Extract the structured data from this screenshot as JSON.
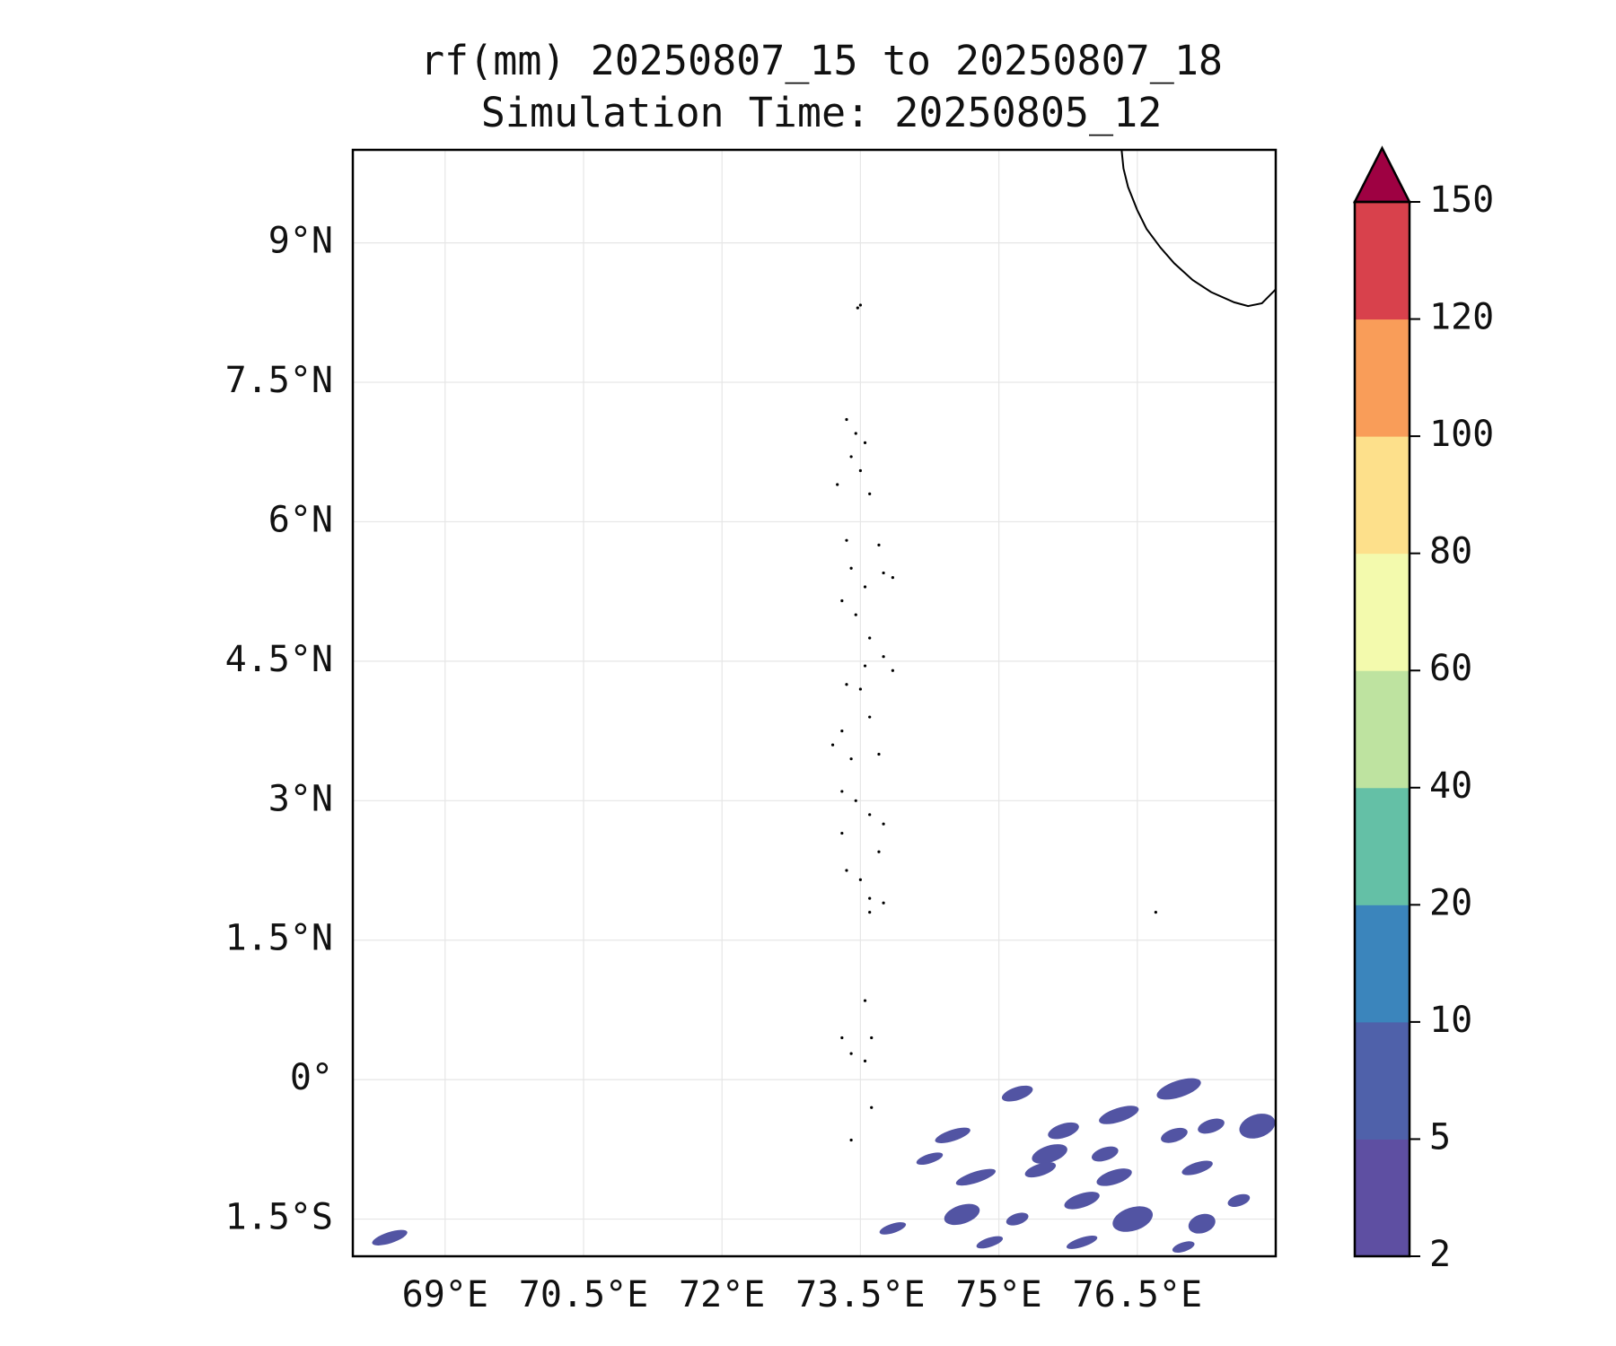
{
  "title": {
    "line1": "rf(mm) 20250807_15 to 20250807_18",
    "line2": "Simulation Time: 20250805_12"
  },
  "map": {
    "extent": {
      "lon": [
        68.0,
        78.0
      ],
      "lat": [
        -1.9,
        10.0
      ]
    },
    "lat_ticks": [
      {
        "value": 9.0,
        "label": "9°N"
      },
      {
        "value": 7.5,
        "label": "7.5°N"
      },
      {
        "value": 6.0,
        "label": "6°N"
      },
      {
        "value": 4.5,
        "label": "4.5°N"
      },
      {
        "value": 3.0,
        "label": "3°N"
      },
      {
        "value": 1.5,
        "label": "1.5°N"
      },
      {
        "value": 0.0,
        "label": "0°"
      },
      {
        "value": -1.5,
        "label": "1.5°S"
      }
    ],
    "lon_ticks": [
      {
        "value": 69.0,
        "label": "69°E"
      },
      {
        "value": 70.5,
        "label": "70.5°E"
      },
      {
        "value": 72.0,
        "label": "72°E"
      },
      {
        "value": 73.5,
        "label": "73.5°E"
      },
      {
        "value": 75.0,
        "label": "75°E"
      },
      {
        "value": 76.5,
        "label": "76.5°E"
      }
    ],
    "gridlines": true,
    "coastline_color": "#000000",
    "india_coast": [
      [
        76.33,
        10.0
      ],
      [
        76.35,
        9.8
      ],
      [
        76.4,
        9.6
      ],
      [
        76.5,
        9.35
      ],
      [
        76.6,
        9.15
      ],
      [
        76.75,
        8.95
      ],
      [
        76.9,
        8.78
      ],
      [
        77.1,
        8.6
      ],
      [
        77.3,
        8.47
      ],
      [
        77.55,
        8.36
      ],
      [
        77.7,
        8.32
      ],
      [
        77.85,
        8.35
      ],
      [
        78.0,
        8.5
      ]
    ],
    "islands": [
      [
        73.47,
        8.3
      ],
      [
        73.5,
        8.33
      ],
      [
        73.35,
        7.1
      ],
      [
        73.45,
        6.95
      ],
      [
        73.55,
        6.85
      ],
      [
        73.4,
        6.7
      ],
      [
        73.5,
        6.55
      ],
      [
        73.25,
        6.4
      ],
      [
        73.6,
        6.3
      ],
      [
        73.35,
        5.8
      ],
      [
        73.7,
        5.75
      ],
      [
        73.4,
        5.5
      ],
      [
        73.75,
        5.45
      ],
      [
        73.85,
        5.4
      ],
      [
        73.55,
        5.3
      ],
      [
        73.3,
        5.15
      ],
      [
        73.45,
        5.0
      ],
      [
        73.6,
        4.75
      ],
      [
        73.75,
        4.55
      ],
      [
        73.85,
        4.4
      ],
      [
        73.55,
        4.45
      ],
      [
        73.35,
        4.25
      ],
      [
        73.5,
        4.2
      ],
      [
        73.3,
        3.75
      ],
      [
        73.6,
        3.9
      ],
      [
        73.2,
        3.6
      ],
      [
        73.4,
        3.45
      ],
      [
        73.7,
        3.5
      ],
      [
        73.3,
        3.1
      ],
      [
        73.45,
        3.0
      ],
      [
        73.6,
        2.85
      ],
      [
        73.75,
        2.75
      ],
      [
        73.3,
        2.65
      ],
      [
        73.7,
        2.45
      ],
      [
        73.35,
        2.25
      ],
      [
        73.5,
        2.15
      ],
      [
        73.6,
        1.95
      ],
      [
        73.75,
        1.9
      ],
      [
        73.6,
        1.8
      ],
      [
        73.55,
        0.85
      ],
      [
        73.3,
        0.45
      ],
      [
        73.4,
        0.28
      ],
      [
        73.55,
        0.2
      ],
      [
        73.62,
        0.45
      ],
      [
        73.62,
        -0.3
      ],
      [
        73.4,
        -0.65
      ],
      [
        76.7,
        1.8
      ]
    ]
  },
  "rain_patches": [
    {
      "lon": 68.4,
      "lat": -1.7,
      "w": 0.4,
      "h": 0.12
    },
    {
      "lon": 75.2,
      "lat": -0.15,
      "w": 0.35,
      "h": 0.14
    },
    {
      "lon": 76.95,
      "lat": -0.1,
      "w": 0.5,
      "h": 0.18
    },
    {
      "lon": 77.8,
      "lat": -0.5,
      "w": 0.4,
      "h": 0.25
    },
    {
      "lon": 76.3,
      "lat": -0.38,
      "w": 0.45,
      "h": 0.15
    },
    {
      "lon": 75.7,
      "lat": -0.55,
      "w": 0.35,
      "h": 0.15
    },
    {
      "lon": 74.5,
      "lat": -0.6,
      "w": 0.4,
      "h": 0.12
    },
    {
      "lon": 75.55,
      "lat": -0.8,
      "w": 0.4,
      "h": 0.18
    },
    {
      "lon": 76.15,
      "lat": -0.8,
      "w": 0.3,
      "h": 0.14
    },
    {
      "lon": 76.9,
      "lat": -0.6,
      "w": 0.3,
      "h": 0.14
    },
    {
      "lon": 77.3,
      "lat": -0.5,
      "w": 0.3,
      "h": 0.14
    },
    {
      "lon": 74.25,
      "lat": -0.85,
      "w": 0.3,
      "h": 0.1
    },
    {
      "lon": 74.75,
      "lat": -1.05,
      "w": 0.45,
      "h": 0.12
    },
    {
      "lon": 75.45,
      "lat": -0.97,
      "w": 0.35,
      "h": 0.13
    },
    {
      "lon": 76.25,
      "lat": -1.05,
      "w": 0.4,
      "h": 0.15
    },
    {
      "lon": 77.15,
      "lat": -0.95,
      "w": 0.35,
      "h": 0.12
    },
    {
      "lon": 73.85,
      "lat": -1.6,
      "w": 0.3,
      "h": 0.1
    },
    {
      "lon": 74.6,
      "lat": -1.45,
      "w": 0.4,
      "h": 0.2
    },
    {
      "lon": 75.2,
      "lat": -1.5,
      "w": 0.25,
      "h": 0.12
    },
    {
      "lon": 75.9,
      "lat": -1.3,
      "w": 0.4,
      "h": 0.15
    },
    {
      "lon": 76.45,
      "lat": -1.5,
      "w": 0.45,
      "h": 0.25
    },
    {
      "lon": 77.2,
      "lat": -1.55,
      "w": 0.3,
      "h": 0.2
    },
    {
      "lon": 77.6,
      "lat": -1.3,
      "w": 0.25,
      "h": 0.12
    },
    {
      "lon": 74.9,
      "lat": -1.75,
      "w": 0.3,
      "h": 0.1
    },
    {
      "lon": 75.9,
      "lat": -1.75,
      "w": 0.35,
      "h": 0.1
    },
    {
      "lon": 77.0,
      "lat": -1.8,
      "w": 0.25,
      "h": 0.1
    }
  ],
  "rain_color": "#5254a3",
  "colorbar": {
    "levels": [
      "2",
      "5",
      "10",
      "20",
      "40",
      "60",
      "80",
      "100",
      "120",
      "150"
    ],
    "colors": [
      "#5e4fa2",
      "#4f61aa",
      "#3b85bc",
      "#64c0a6",
      "#bee3a0",
      "#f3faad",
      "#fde08b",
      "#f99d59",
      "#d8414c"
    ],
    "extend_color": "#9e0142",
    "extend": "max"
  }
}
